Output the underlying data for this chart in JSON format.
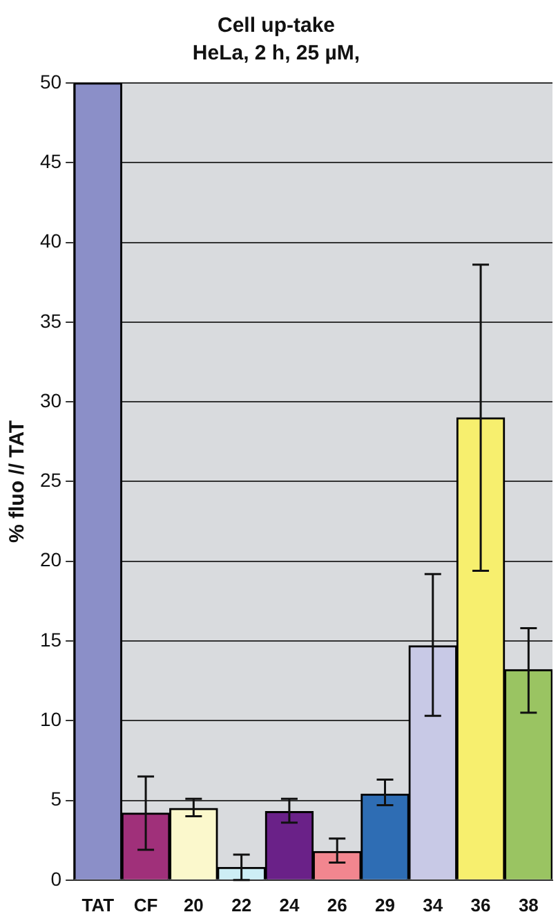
{
  "chart_data": {
    "type": "bar",
    "title": "Cell up-take",
    "subtitle": "HeLa, 2 h, 25 µM,",
    "ylabel": "% fluo // TAT",
    "categories": [
      "TAT",
      "CF",
      "20",
      "22",
      "24",
      "26",
      "29",
      "34",
      "36",
      "38"
    ],
    "values": [
      50,
      4.2,
      4.5,
      0.8,
      4.3,
      1.8,
      5.4,
      14.7,
      29.0,
      13.2
    ],
    "colors": [
      "#8b8fc8",
      "#a0307a",
      "#fbf8cc",
      "#cdeef5",
      "#6a2188",
      "#f2868f",
      "#2e6db4",
      "#c8c9e6",
      "#f7ef6e",
      "#9ac462"
    ],
    "errors": [
      null,
      [
        1.9,
        6.5
      ],
      [
        4.0,
        5.1
      ],
      [
        0,
        1.6
      ],
      [
        3.6,
        5.1
      ],
      [
        1.1,
        2.6
      ],
      [
        4.7,
        6.3
      ],
      [
        10.3,
        19.2
      ],
      [
        19.4,
        38.6
      ],
      [
        10.5,
        15.8
      ]
    ],
    "ylim": [
      0,
      50
    ],
    "yticks": [
      0,
      5,
      10,
      15,
      20,
      25,
      30,
      35,
      40,
      45,
      50
    ],
    "grid": "y",
    "legend": false
  }
}
